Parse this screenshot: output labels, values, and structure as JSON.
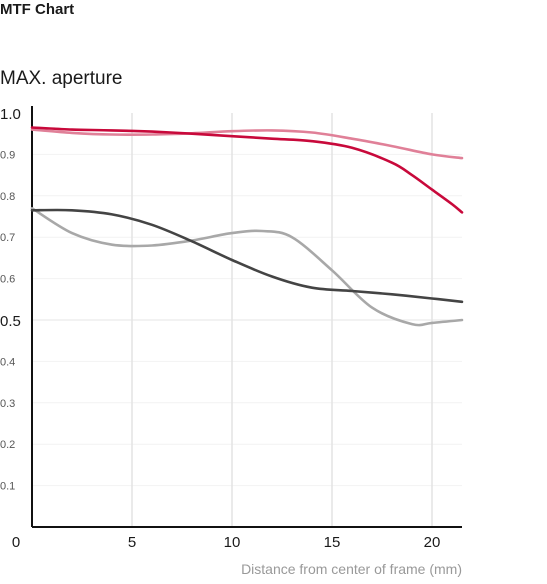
{
  "page": {
    "title": "MTF Chart"
  },
  "chart_data": {
    "type": "line",
    "title": "MAX. aperture",
    "xlabel": "Distance from center of frame (mm)",
    "ylabel": "",
    "xlim": [
      0,
      21.5
    ],
    "ylim": [
      0,
      1.0
    ],
    "grid": true,
    "x_ticks": [
      {
        "value": 0,
        "label": "0"
      },
      {
        "value": 5,
        "label": "5"
      },
      {
        "value": 10,
        "label": "10"
      },
      {
        "value": 15,
        "label": "15"
      },
      {
        "value": 20,
        "label": "20"
      }
    ],
    "y_ticks": [
      {
        "value": 1.0,
        "label": "1.0",
        "major": true
      },
      {
        "value": 0.9,
        "label": "0.9",
        "major": false
      },
      {
        "value": 0.8,
        "label": "0.8",
        "major": false
      },
      {
        "value": 0.7,
        "label": "0.7",
        "major": false
      },
      {
        "value": 0.6,
        "label": "0.6",
        "major": false
      },
      {
        "value": 0.5,
        "label": "0.5",
        "major": true
      },
      {
        "value": 0.4,
        "label": "0.4",
        "major": false
      },
      {
        "value": 0.3,
        "label": "0.3",
        "major": false
      },
      {
        "value": 0.2,
        "label": "0.2",
        "major": false
      },
      {
        "value": 0.1,
        "label": "0.1",
        "major": false
      }
    ],
    "series": [
      {
        "color": "#e08098",
        "width": 2.6,
        "x": [
          0,
          2,
          4,
          6,
          8,
          10,
          12,
          14,
          16,
          18,
          20,
          21.5
        ],
        "y": [
          0.96,
          0.952,
          0.948,
          0.948,
          0.951,
          0.956,
          0.958,
          0.953,
          0.938,
          0.92,
          0.9,
          0.891
        ]
      },
      {
        "color": "#c8093b",
        "width": 2.6,
        "x": [
          0,
          2,
          4,
          6,
          8,
          10,
          12,
          14,
          16,
          18,
          19,
          20,
          21,
          21.5
        ],
        "y": [
          0.965,
          0.96,
          0.958,
          0.955,
          0.95,
          0.944,
          0.938,
          0.932,
          0.916,
          0.88,
          0.85,
          0.815,
          0.78,
          0.76
        ]
      },
      {
        "color": "#a8a8a8",
        "width": 2.6,
        "x": [
          0,
          2,
          4,
          6,
          8,
          10,
          11.5,
          13,
          15,
          17,
          19,
          20,
          21.5
        ],
        "y": [
          0.77,
          0.71,
          0.682,
          0.68,
          0.692,
          0.71,
          0.715,
          0.7,
          0.62,
          0.53,
          0.49,
          0.493,
          0.5
        ]
      },
      {
        "color": "#444444",
        "width": 2.6,
        "x": [
          0,
          2,
          4,
          6,
          8,
          10,
          12,
          14,
          16,
          18,
          20,
          21.5
        ],
        "y": [
          0.765,
          0.765,
          0.755,
          0.73,
          0.69,
          0.645,
          0.605,
          0.578,
          0.57,
          0.562,
          0.552,
          0.544
        ]
      }
    ]
  }
}
